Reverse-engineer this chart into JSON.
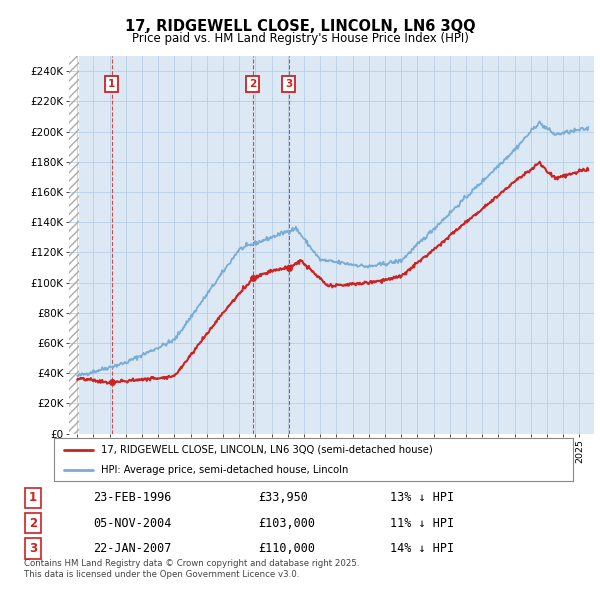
{
  "title": "17, RIDGEWELL CLOSE, LINCOLN, LN6 3QQ",
  "subtitle": "Price paid vs. HM Land Registry's House Price Index (HPI)",
  "hpi_color": "#7aadd4",
  "price_color": "#cc2222",
  "background_color": "#dce9f5",
  "grid_color": "#b8cfe8",
  "purchases": [
    {
      "num": 1,
      "date_label": "23-FEB-1996",
      "price": 33950,
      "pct": "13% ↓ HPI",
      "x_year": 1996.13
    },
    {
      "num": 2,
      "date_label": "05-NOV-2004",
      "price": 103000,
      "pct": "11% ↓ HPI",
      "x_year": 2004.84
    },
    {
      "num": 3,
      "date_label": "22-JAN-2007",
      "price": 110000,
      "pct": "14% ↓ HPI",
      "x_year": 2007.06
    }
  ],
  "legend_label_price": "17, RIDGEWELL CLOSE, LINCOLN, LN6 3QQ (semi-detached house)",
  "legend_label_hpi": "HPI: Average price, semi-detached house, Lincoln",
  "footer": "Contains HM Land Registry data © Crown copyright and database right 2025.\nThis data is licensed under the Open Government Licence v3.0.",
  "ylim": [
    0,
    250000
  ],
  "yticks": [
    0,
    20000,
    40000,
    60000,
    80000,
    100000,
    120000,
    140000,
    160000,
    180000,
    200000,
    220000,
    240000
  ],
  "xlim_start": 1993.5,
  "xlim_end": 2025.9
}
